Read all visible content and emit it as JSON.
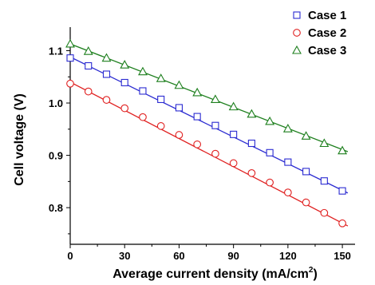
{
  "chart_data": {
    "type": "scatter",
    "xlabel": "Average current density (mA/cm",
    "xlabel_sup": "2",
    "xlabel_end": ")",
    "ylabel": "Cell voltage (V)",
    "xlim": [
      0,
      157
    ],
    "ylim": [
      0.73,
      1.145
    ],
    "xticks": [
      0,
      30,
      60,
      90,
      120,
      150
    ],
    "xtick_labels": [
      "0",
      "30",
      "60",
      "90",
      "120",
      "150"
    ],
    "yticks": [
      0.8,
      0.9,
      1.0,
      1.1
    ],
    "ytick_labels": [
      "0.8",
      "0.9",
      "1.0",
      "1.1"
    ],
    "grid": false,
    "legend_position": "top-right",
    "series": [
      {
        "name": "Case 1",
        "marker": "square",
        "color": "#2b2bd1",
        "x": [
          0,
          10,
          20,
          30,
          40,
          50,
          60,
          70,
          80,
          90,
          100,
          110,
          120,
          130,
          140,
          150
        ],
        "y": [
          1.086,
          1.071,
          1.055,
          1.039,
          1.023,
          1.007,
          0.991,
          0.974,
          0.957,
          0.94,
          0.923,
          0.905,
          0.887,
          0.869,
          0.851,
          0.832
        ],
        "fit": [
          [
            0,
            1.088
          ],
          [
            153,
            0.828
          ]
        ]
      },
      {
        "name": "Case 2",
        "marker": "circle",
        "color": "#e02020",
        "x": [
          0,
          10,
          20,
          30,
          40,
          50,
          60,
          70,
          80,
          90,
          100,
          110,
          120,
          130,
          140,
          150
        ],
        "y": [
          1.037,
          1.022,
          1.006,
          0.99,
          0.973,
          0.956,
          0.939,
          0.921,
          0.903,
          0.885,
          0.866,
          0.848,
          0.829,
          0.81,
          0.79,
          0.77
        ],
        "fit": [
          [
            0,
            1.04
          ],
          [
            153,
            0.765
          ]
        ]
      },
      {
        "name": "Case 3",
        "marker": "triangle",
        "color": "#1d7f1d",
        "x": [
          0,
          10,
          20,
          30,
          40,
          50,
          60,
          70,
          80,
          90,
          100,
          110,
          120,
          130,
          140,
          150
        ],
        "y": [
          1.113,
          1.099,
          1.086,
          1.073,
          1.06,
          1.047,
          1.034,
          1.02,
          1.007,
          0.993,
          0.979,
          0.965,
          0.951,
          0.937,
          0.923,
          0.909
        ],
        "fit": [
          [
            0,
            1.113
          ],
          [
            153,
            0.907
          ]
        ]
      }
    ]
  }
}
